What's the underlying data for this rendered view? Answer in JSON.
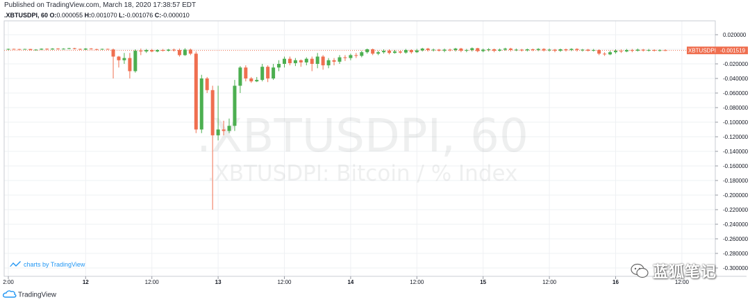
{
  "header": {
    "published": "Published on TradingView.com, March 18, 2020 17:38:57 EDT",
    "symbol": ".XBTUSDPI, 60",
    "ohlc": [
      {
        "label": "O:",
        "value": "0.000055"
      },
      {
        "label": "H:",
        "value": "0.001070"
      },
      {
        "label": "L:",
        "value": "-0.001076"
      },
      {
        "label": "C:",
        "value": "-0.000010"
      }
    ]
  },
  "watermark": {
    "title": ".XBTUSDPI, 60",
    "subtitle": ".XBTUSDPI: Bitcoin / % Index"
  },
  "branding": {
    "charts_by": "charts by TradingView",
    "footer": "TradingView",
    "wechat": "蓝狐笔记"
  },
  "last_price": {
    "symbol_tag": "XBTUSDPI",
    "value_tag": "-0.001519",
    "value": -0.001519
  },
  "colors": {
    "up": "#4caf50",
    "down": "#ef6f50",
    "grid": "#eef0f3",
    "last_line": "#ef6f50",
    "tag_bg": "#ef6f50",
    "text": "#131722"
  },
  "chart_data": {
    "type": "candlestick",
    "title": ".XBTUSDPI, 60",
    "subtitle": ".XBTUSDPI: Bitcoin / % Index",
    "xlabel": "",
    "ylabel": "",
    "ylim": [
      -0.31,
      0.03
    ],
    "grid": true,
    "y_ticks": [
      "0.020000",
      "0.000000",
      "-0.020000",
      "-0.040000",
      "-0.060000",
      "-0.080000",
      "-0.100000",
      "-0.120000",
      "-0.140000",
      "-0.160000",
      "-0.180000",
      "-0.200000",
      "-0.220000",
      "-0.240000",
      "-0.260000",
      "-0.280000",
      "-0.300000"
    ],
    "x_ticks": [
      {
        "label": "2:00",
        "bar": 0,
        "major": false
      },
      {
        "label": "12",
        "bar": 14,
        "major": true
      },
      {
        "label": "12:00",
        "bar": 26,
        "major": false
      },
      {
        "label": "13",
        "bar": 38,
        "major": true
      },
      {
        "label": "12:00",
        "bar": 50,
        "major": false
      },
      {
        "label": "14",
        "bar": 62,
        "major": true
      },
      {
        "label": "12:00",
        "bar": 74,
        "major": false
      },
      {
        "label": "15",
        "bar": 86,
        "major": true
      },
      {
        "label": "12:00",
        "bar": 98,
        "major": false
      },
      {
        "label": "16",
        "bar": 110,
        "major": true
      },
      {
        "label": "12:00",
        "bar": 122,
        "major": false
      }
    ],
    "candles": [
      [
        0.0,
        0.0005,
        0.001,
        -0.0012
      ],
      [
        0.0005,
        0.0003,
        0.001,
        -0.0005
      ],
      [
        0.0003,
        -0.0002,
        0.0006,
        -0.0008
      ],
      [
        -0.0002,
        0.0004,
        0.0008,
        -0.0005
      ],
      [
        0.0004,
        -0.001,
        0.0006,
        -0.0015
      ],
      [
        -0.001,
        -0.0005,
        0.0002,
        -0.0015
      ],
      [
        -0.0005,
        0.0008,
        0.0012,
        -0.0008
      ],
      [
        0.0008,
        -0.0003,
        0.0012,
        -0.0008
      ],
      [
        -0.0003,
        0.001,
        0.0015,
        -0.0005
      ],
      [
        0.001,
        0.0,
        0.0015,
        -0.0005
      ],
      [
        0.0,
        0.0008,
        0.0014,
        -0.0004
      ],
      [
        0.0008,
        0.0015,
        0.002,
        0.0002
      ],
      [
        0.0015,
        0.0005,
        0.002,
        -0.0002
      ],
      [
        0.0005,
        -0.0005,
        0.001,
        -0.001
      ],
      [
        -0.0005,
        0.001,
        0.0016,
        -0.001
      ],
      [
        0.001,
        0.0002,
        0.0016,
        -0.0004
      ],
      [
        0.0002,
        -0.0004,
        0.0008,
        -0.001
      ],
      [
        -0.0004,
        0.0005,
        0.001,
        -0.0008
      ],
      [
        0.0005,
        0.0,
        0.001,
        -0.0006
      ],
      [
        -0.0003,
        -0.01,
        0.001,
        -0.04
      ],
      [
        -0.01,
        -0.015,
        -0.009,
        -0.025
      ],
      [
        -0.015,
        -0.012,
        -0.005,
        -0.02
      ],
      [
        -0.012,
        -0.03,
        -0.005,
        -0.04
      ],
      [
        -0.03,
        -0.002,
        0.0,
        -0.032
      ],
      [
        -0.002,
        -0.003,
        0.001,
        -0.008
      ],
      [
        -0.003,
        -0.001,
        0.0005,
        -0.005
      ],
      [
        -0.001,
        -0.003,
        0.0005,
        -0.004
      ],
      [
        -0.003,
        -0.001,
        0.0,
        -0.004
      ],
      [
        -0.001,
        -0.002,
        0.0005,
        -0.003
      ],
      [
        -0.002,
        -0.0005,
        0.0005,
        -0.003
      ],
      [
        -0.0005,
        -0.001,
        0.001,
        -0.003
      ],
      [
        -0.001,
        -0.008,
        0.001,
        -0.01
      ],
      [
        -0.008,
        -0.0005,
        0.0015,
        -0.009
      ],
      [
        -0.0005,
        -0.006,
        0.001,
        -0.008
      ],
      [
        -0.006,
        -0.11,
        -0.003,
        -0.115
      ],
      [
        -0.11,
        -0.04,
        -0.035,
        -0.115
      ],
      [
        -0.04,
        -0.056,
        -0.038,
        -0.06
      ],
      [
        -0.056,
        -0.118,
        -0.05,
        -0.22
      ],
      [
        -0.118,
        -0.11,
        -0.05,
        -0.125
      ],
      [
        -0.11,
        -0.112,
        -0.098,
        -0.118
      ],
      [
        -0.112,
        -0.105,
        -0.095,
        -0.115
      ],
      [
        -0.105,
        -0.05,
        -0.042,
        -0.112
      ],
      [
        -0.05,
        -0.025,
        -0.023,
        -0.06
      ],
      [
        -0.025,
        -0.04,
        -0.022,
        -0.044
      ],
      [
        -0.04,
        -0.044,
        -0.038,
        -0.046
      ],
      [
        -0.044,
        -0.042,
        -0.038,
        -0.045
      ],
      [
        -0.042,
        -0.024,
        -0.02,
        -0.044
      ],
      [
        -0.024,
        -0.04,
        -0.022,
        -0.045
      ],
      [
        -0.04,
        -0.025,
        -0.02,
        -0.042
      ],
      [
        -0.025,
        -0.02,
        -0.015,
        -0.03
      ],
      [
        -0.02,
        -0.013,
        -0.01,
        -0.025
      ],
      [
        -0.013,
        -0.019,
        -0.01,
        -0.022
      ],
      [
        -0.019,
        -0.015,
        -0.012,
        -0.023
      ],
      [
        -0.015,
        -0.018,
        -0.014,
        -0.024
      ],
      [
        -0.018,
        -0.013,
        -0.011,
        -0.022
      ],
      [
        -0.013,
        -0.02,
        -0.01,
        -0.03
      ],
      [
        -0.02,
        -0.01,
        -0.005,
        -0.026
      ],
      [
        -0.01,
        -0.022,
        -0.008,
        -0.028
      ],
      [
        -0.022,
        -0.015,
        -0.012,
        -0.026
      ],
      [
        -0.015,
        -0.017,
        -0.012,
        -0.022
      ],
      [
        -0.017,
        -0.011,
        -0.008,
        -0.02
      ],
      [
        -0.011,
        -0.012,
        -0.008,
        -0.016
      ],
      [
        -0.012,
        -0.008,
        -0.006,
        -0.015
      ],
      [
        -0.008,
        -0.009,
        -0.005,
        -0.012
      ],
      [
        -0.009,
        -0.004,
        -0.002,
        -0.011
      ],
      [
        -0.004,
        0.0,
        0.001,
        -0.006
      ],
      [
        0.0,
        -0.006,
        0.001,
        -0.008
      ],
      [
        -0.006,
        -0.004,
        -0.002,
        -0.008
      ],
      [
        -0.004,
        -0.002,
        0.0,
        -0.006
      ],
      [
        -0.002,
        -0.005,
        0.0,
        -0.007
      ],
      [
        -0.005,
        -0.003,
        -0.001,
        -0.006
      ],
      [
        -0.003,
        -0.0045,
        -0.002,
        -0.006
      ],
      [
        -0.0045,
        -0.001,
        0.0005,
        -0.006
      ],
      [
        -0.001,
        -0.004,
        0.0,
        -0.006
      ],
      [
        -0.004,
        -0.0015,
        0.0005,
        -0.005
      ],
      [
        -0.0015,
        0.001,
        0.002,
        -0.003
      ],
      [
        0.001,
        -0.001,
        0.002,
        -0.003
      ],
      [
        -0.001,
        -0.0005,
        0.001,
        -0.003
      ],
      [
        -0.0005,
        -0.002,
        0.0005,
        -0.003
      ],
      [
        -0.002,
        -0.0005,
        0.001,
        -0.004
      ],
      [
        -0.0005,
        -0.001,
        0.001,
        -0.003
      ],
      [
        -0.001,
        0.001,
        0.002,
        -0.003
      ],
      [
        0.001,
        -0.002,
        0.002,
        -0.004
      ],
      [
        -0.002,
        -0.001,
        0.0005,
        -0.004
      ],
      [
        -0.001,
        0.0015,
        0.0025,
        -0.003
      ],
      [
        0.0015,
        -0.0025,
        0.002,
        -0.004
      ],
      [
        -0.0025,
        -0.0005,
        0.001,
        -0.004
      ],
      [
        -0.0005,
        0.0,
        0.0015,
        -0.003
      ],
      [
        0.0,
        -0.002,
        0.001,
        -0.004
      ],
      [
        -0.002,
        -0.0005,
        0.001,
        -0.003
      ],
      [
        -0.0005,
        0.001,
        0.002,
        -0.002
      ],
      [
        0.001,
        -0.001,
        0.002,
        -0.003
      ],
      [
        -0.001,
        -0.0005,
        0.001,
        -0.0025
      ],
      [
        -0.0005,
        -0.0015,
        0.0005,
        -0.003
      ],
      [
        -0.0015,
        0.0,
        0.001,
        -0.003
      ],
      [
        0.0,
        -0.001,
        0.001,
        -0.0025
      ],
      [
        -0.001,
        0.0005,
        0.0015,
        -0.0025
      ],
      [
        0.0005,
        -0.0015,
        0.0015,
        -0.003
      ],
      [
        -0.0015,
        -0.0005,
        0.001,
        -0.003
      ],
      [
        -0.0005,
        -0.002,
        0.0005,
        -0.004
      ],
      [
        -0.002,
        0.0,
        0.001,
        -0.0035
      ],
      [
        0.0,
        -0.001,
        0.001,
        -0.003
      ],
      [
        -0.001,
        0.0005,
        0.0015,
        -0.0025
      ],
      [
        0.0005,
        -0.001,
        0.0015,
        -0.003
      ],
      [
        -0.001,
        -0.0005,
        0.0005,
        -0.003
      ],
      [
        -0.0005,
        -0.002,
        0.0005,
        -0.003
      ],
      [
        -0.002,
        -0.001,
        0.0005,
        -0.003
      ],
      [
        -0.001,
        -0.006,
        0.0,
        -0.008
      ],
      [
        -0.006,
        -0.007,
        -0.004,
        -0.009
      ],
      [
        -0.007,
        -0.004,
        -0.002,
        -0.008
      ],
      [
        -0.004,
        -0.002,
        0.0,
        -0.006
      ],
      [
        -0.002,
        -0.003,
        0.0,
        -0.005
      ],
      [
        -0.003,
        -0.001,
        0.0005,
        -0.004
      ],
      [
        -0.001,
        -0.002,
        0.0005,
        -0.004
      ],
      [
        -0.002,
        -0.0005,
        0.001,
        -0.003
      ],
      [
        -0.0005,
        -0.0015,
        0.0005,
        -0.003
      ],
      [
        -0.0015,
        -0.001,
        0.0005,
        -0.003
      ],
      [
        -0.001,
        -0.002,
        0.0,
        -0.003
      ],
      [
        -0.002,
        -0.0012,
        0.0,
        -0.003
      ],
      [
        -0.0012,
        -0.0015,
        0.0,
        -0.0025
      ]
    ]
  }
}
